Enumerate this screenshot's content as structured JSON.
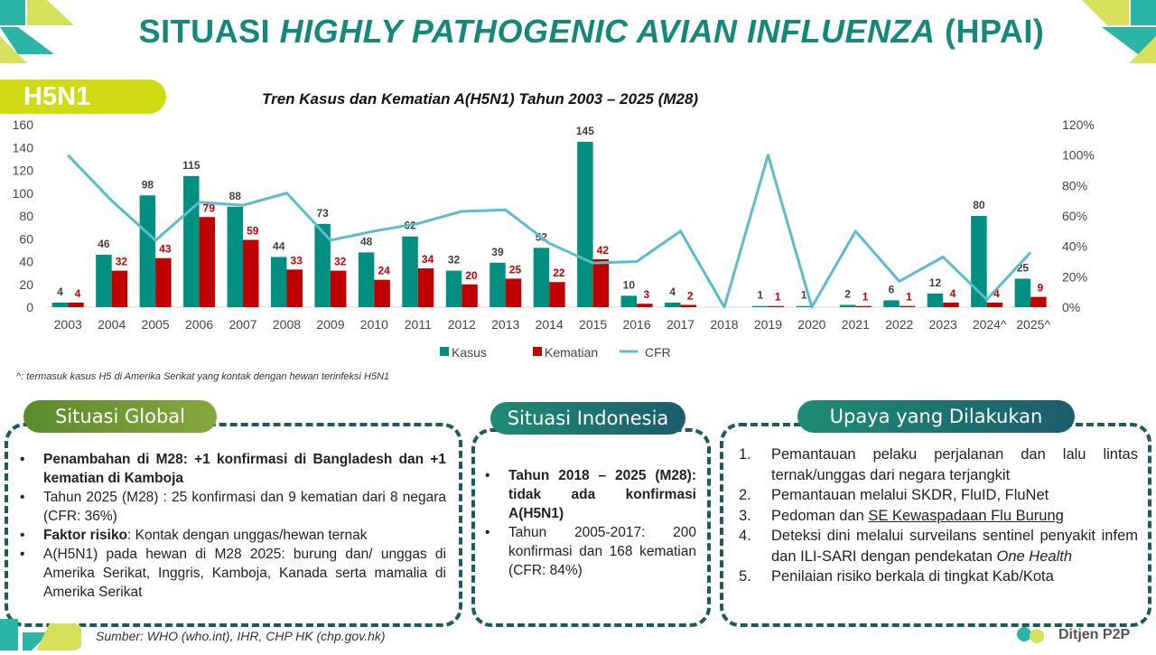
{
  "header": {
    "title_pre": "SITUASI ",
    "title_italic": "HIGHLY PATHOGENIC AVIAN INFLUENZA",
    "title_post": " (HPAI)",
    "badge": "H5N1"
  },
  "chart_data": {
    "type": "bar",
    "title": "Tren Kasus dan Kematian A(H5N1) Tahun 2003 – 2025 (M28)",
    "categories": [
      "2003",
      "2004",
      "2005",
      "2006",
      "2007",
      "2008",
      "2009",
      "2010",
      "2011",
      "2012",
      "2013",
      "2014",
      "2015",
      "2016",
      "2017",
      "2018",
      "2019",
      "2020",
      "2021",
      "2022",
      "2023",
      "2024^",
      "2025^"
    ],
    "series": [
      {
        "name": "Kasus",
        "type": "bar",
        "color": "#008f80",
        "values": [
          4,
          46,
          98,
          115,
          88,
          44,
          73,
          48,
          62,
          32,
          39,
          52,
          145,
          10,
          4,
          0,
          1,
          1,
          2,
          6,
          12,
          80,
          25
        ]
      },
      {
        "name": "Kematian",
        "type": "bar",
        "color": "#c00000",
        "values": [
          4,
          32,
          43,
          79,
          59,
          33,
          32,
          24,
          34,
          20,
          25,
          22,
          42,
          3,
          2,
          0,
          1,
          0,
          1,
          1,
          4,
          4,
          9
        ]
      },
      {
        "name": "CFR",
        "type": "line",
        "axis": "right",
        "color": "#5bbccc",
        "values": [
          100,
          70,
          44,
          69,
          67,
          75,
          44,
          50,
          55,
          63,
          64,
          42,
          29,
          30,
          50,
          0,
          100,
          0,
          50,
          17,
          33,
          5,
          36
        ]
      }
    ],
    "kasus_labels": [
      "4",
      "46",
      "98",
      "115",
      "88",
      "44",
      "73",
      "48",
      "62",
      "32",
      "39",
      "52",
      "145",
      "10",
      "4",
      "",
      "1",
      "1",
      "2",
      "6",
      "12",
      "80",
      "25"
    ],
    "kematian_labels": [
      "4",
      "32",
      "43",
      "79",
      "59",
      "33",
      "32",
      "24",
      "34",
      "20",
      "25",
      "22",
      "42",
      "3",
      "2",
      "",
      "1",
      "",
      "1",
      "1",
      "4",
      "4",
      "9"
    ],
    "ylim": [
      0,
      160
    ],
    "yticks": [
      "0",
      "20",
      "40",
      "60",
      "80",
      "100",
      "120",
      "140",
      "160"
    ],
    "y2lim": [
      0,
      120
    ],
    "y2ticks": [
      "0%",
      "20%",
      "40%",
      "60%",
      "80%",
      "100%",
      "120%"
    ],
    "legend": [
      "Kasus",
      "Kematian",
      "CFR"
    ],
    "legend_position": "bottom"
  },
  "footnote": "^: termasuk kasus H5 di Amerika Serikat yang kontak dengan hewan terinfeksi H5N1",
  "global": {
    "title": "Situasi Global",
    "items": [
      {
        "bold": "Penambahan di M28: +1 konfirmasi di Bangladesh dan +1 kematian di Kamboja",
        "text": ""
      },
      {
        "bold": "",
        "text": "Tahun 2025 (M28) : 25 konfirmasi dan 9 kematian dari 8 negara (CFR: 36%)"
      },
      {
        "bold": "Faktor risiko",
        "text": ": Kontak dengan unggas/hewan ternak"
      },
      {
        "bold": "",
        "text": "A(H5N1) pada hewan di M28 2025: burung dan/ unggas di Amerika Serikat, Inggris, Kamboja, Kanada serta mamalia di Amerika Serikat"
      }
    ]
  },
  "indonesia": {
    "title": "Situasi Indonesia",
    "items": [
      {
        "bold": "Tahun 2018 – 2025 (M28): tidak ada konfirmasi A(H5N1)",
        "text": ""
      },
      {
        "bold": "",
        "text": "Tahun 2005-2017: 200 konfirmasi dan 168 kematian (CFR: 84%)"
      }
    ]
  },
  "upaya": {
    "title": "Upaya yang Dilakukan",
    "items": [
      {
        "num": "1.",
        "text": "Pemantauan pelaku perjalanan dan lalu lintas ternak/unggas dari negara terjangkit"
      },
      {
        "num": "2.",
        "text": "Pemantauan melalui SKDR, FluID, FluNet"
      },
      {
        "num": "3.",
        "text": "Pedoman dan ",
        "link": "SE Kewaspadaan Flu Burung"
      },
      {
        "num": "4.",
        "text": "Deteksi dini melalui surveilans sentinel penyakit infem dan ILI-SARI dengan pendekatan ",
        "italic": "One Health"
      },
      {
        "num": "5.",
        "text": "Penilaian risiko berkala di tingkat Kab/Kota"
      }
    ]
  },
  "source": "Sumber: WHO (who.int), IHR, CHP HK (chp.gov.hk)",
  "logo_text": "Ditjen P2P"
}
